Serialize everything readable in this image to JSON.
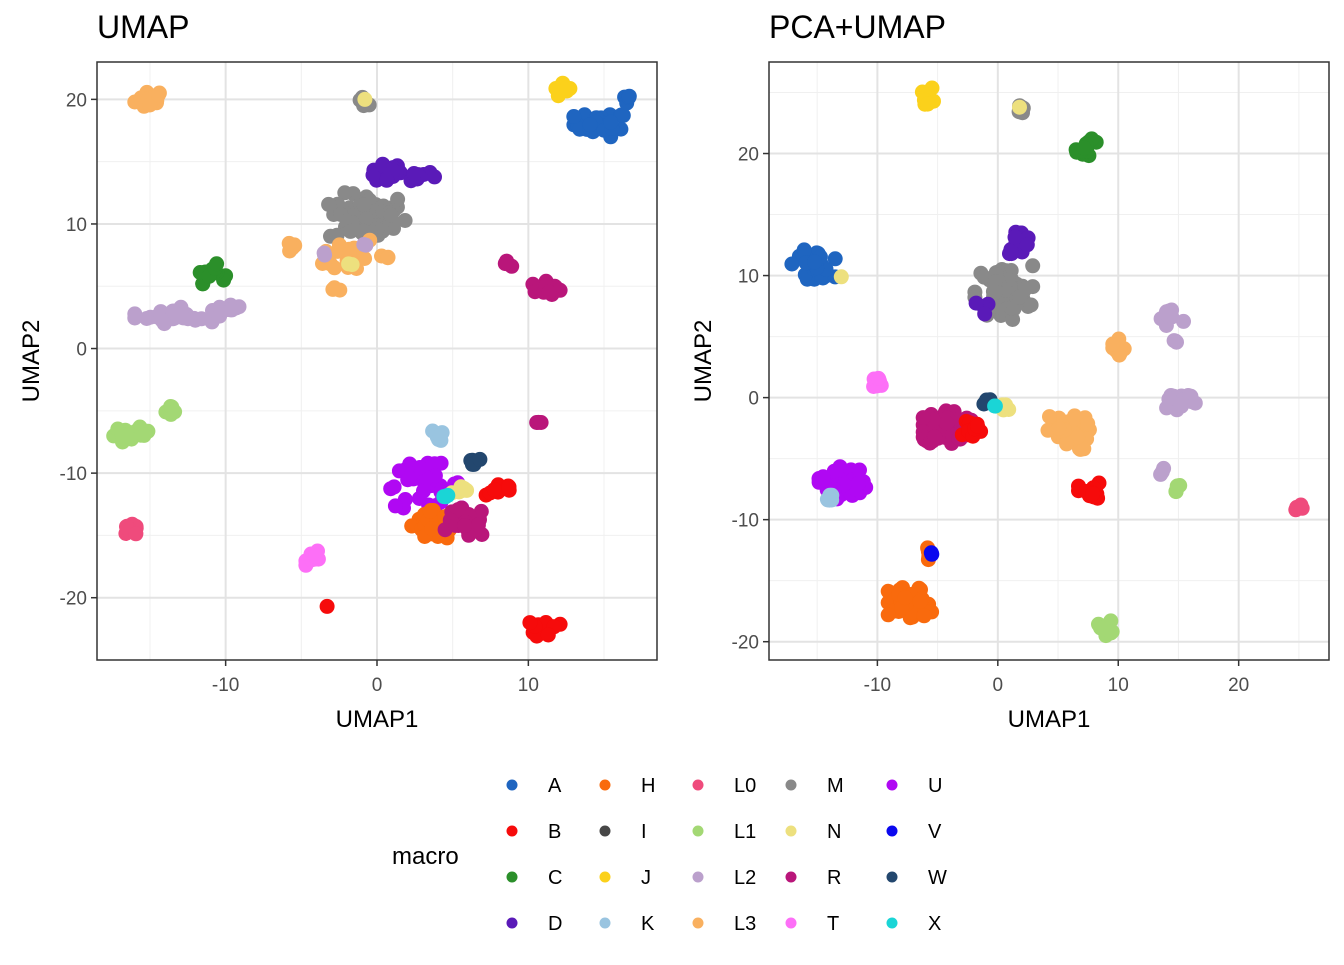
{
  "palette": {
    "A": "#1f65c0",
    "B": "#f60b0b",
    "C": "#2b8f2a",
    "D": "#5a1ab8",
    "H": "#f96a0d",
    "I": "#474747",
    "J": "#fbd11b",
    "K": "#99c4e0",
    "L0": "#ef4b7c",
    "L1": "#a3d874",
    "L2": "#bba0cc",
    "L3": "#f9b05f",
    "M": "#898989",
    "N": "#ede07e",
    "R": "#b9167a",
    "T": "#fd6ff7",
    "U": "#b008f3",
    "V": "#0a08ef",
    "W": "#23476e",
    "X": "#1ad5d6"
  },
  "legend": {
    "title": "macro",
    "columns": [
      [
        "A",
        "B",
        "C",
        "D"
      ],
      [
        "H",
        "I",
        "J",
        "K"
      ],
      [
        "L0",
        "L1",
        "L2",
        "L3"
      ],
      [
        "M",
        "N",
        "R",
        "T"
      ],
      [
        "U",
        "V",
        "W",
        "X"
      ]
    ]
  },
  "chart_data": [
    {
      "type": "scatter",
      "title": "UMAP",
      "xlabel": "UMAP1",
      "ylabel": "UMAP2",
      "xlim": [
        -18.5,
        18.5
      ],
      "ylim": [
        -25,
        23
      ],
      "xticks": [
        -10,
        0,
        10
      ],
      "yticks": [
        -20,
        -10,
        0,
        10,
        20
      ],
      "grid": true,
      "clusters": [
        {
          "group": "L3",
          "x": -15,
          "y": 20,
          "n": 16,
          "sx": 0.5,
          "sy": 0.4
        },
        {
          "group": "M",
          "x": -0.8,
          "y": 20,
          "n": 6,
          "sx": 0.25,
          "sy": 0.25
        },
        {
          "group": "N",
          "x": -0.8,
          "y": 20,
          "n": 1,
          "sx": 0,
          "sy": 0
        },
        {
          "group": "J",
          "x": 12.4,
          "y": 20.7,
          "n": 8,
          "sx": 0.35,
          "sy": 0.3
        },
        {
          "group": "A",
          "x": 14.8,
          "y": 18,
          "n": 28,
          "sx": 0.9,
          "sy": 0.5
        },
        {
          "group": "A",
          "x": 16.5,
          "y": 20,
          "n": 4,
          "sx": 0.2,
          "sy": 0.2
        },
        {
          "group": "D",
          "x": 1.2,
          "y": 14,
          "n": 25,
          "sx": 1.3,
          "sy": 0.4
        },
        {
          "group": "M",
          "x": -0.6,
          "y": 10.5,
          "n": 60,
          "sx": 1.3,
          "sy": 1.0
        },
        {
          "group": "L3",
          "x": -5.5,
          "y": 8.2,
          "n": 6,
          "sx": 0.3,
          "sy": 0.3
        },
        {
          "group": "L3",
          "x": -1.8,
          "y": 7.5,
          "n": 18,
          "sx": 0.9,
          "sy": 0.8
        },
        {
          "group": "L3",
          "x": -2.8,
          "y": 4.7,
          "n": 3,
          "sx": 0.2,
          "sy": 0.2
        },
        {
          "group": "L3",
          "x": 0.7,
          "y": 7.2,
          "n": 3,
          "sx": 0.2,
          "sy": 0.2
        },
        {
          "group": "L2",
          "x": -3.6,
          "y": 7.7,
          "n": 2,
          "sx": 0.15,
          "sy": 0.1
        },
        {
          "group": "L2",
          "x": -0.8,
          "y": 8.3,
          "n": 2,
          "sx": 0.15,
          "sy": 0.1
        },
        {
          "group": "N",
          "x": -1.6,
          "y": 7.0,
          "n": 2,
          "sx": 0.2,
          "sy": 0.2
        },
        {
          "group": "C",
          "x": -11,
          "y": 6.0,
          "n": 12,
          "sx": 0.5,
          "sy": 0.4
        },
        {
          "group": "R",
          "x": 8.5,
          "y": 6.9,
          "n": 4,
          "sx": 0.2,
          "sy": 0.15
        },
        {
          "group": "R",
          "x": 11.2,
          "y": 4.8,
          "n": 16,
          "sx": 0.5,
          "sy": 0.3
        },
        {
          "group": "L2",
          "x": -13.2,
          "y": 2.7,
          "n": 30,
          "sx": 1.4,
          "sy": 0.35
        },
        {
          "group": "L2",
          "x": -9.7,
          "y": 3.3,
          "n": 6,
          "sx": 0.35,
          "sy": 0.2
        },
        {
          "group": "L1",
          "x": -13.5,
          "y": -5.0,
          "n": 6,
          "sx": 0.3,
          "sy": 0.2
        },
        {
          "group": "L1",
          "x": -16.2,
          "y": -6.9,
          "n": 16,
          "sx": 0.6,
          "sy": 0.3
        },
        {
          "group": "R",
          "x": 10.7,
          "y": -6.0,
          "n": 3,
          "sx": 0.15,
          "sy": 0.15
        },
        {
          "group": "K",
          "x": 4.2,
          "y": -7.0,
          "n": 6,
          "sx": 0.3,
          "sy": 0.3
        },
        {
          "group": "W",
          "x": 6.4,
          "y": -8.9,
          "n": 5,
          "sx": 0.25,
          "sy": 0.2
        },
        {
          "group": "U",
          "x": 3.0,
          "y": -11.0,
          "n": 40,
          "sx": 1.3,
          "sy": 0.9
        },
        {
          "group": "B",
          "x": 8.2,
          "y": -11.3,
          "n": 10,
          "sx": 0.5,
          "sy": 0.25
        },
        {
          "group": "N",
          "x": 5.5,
          "y": -11.4,
          "n": 6,
          "sx": 0.35,
          "sy": 0.3
        },
        {
          "group": "H",
          "x": 3.9,
          "y": -14.2,
          "n": 60,
          "sx": 0.8,
          "sy": 0.6
        },
        {
          "group": "R",
          "x": 5.9,
          "y": -14.0,
          "n": 25,
          "sx": 0.7,
          "sy": 0.6
        },
        {
          "group": "X",
          "x": 4.5,
          "y": -12.0,
          "n": 3,
          "sx": 0.12,
          "sy": 0.15
        },
        {
          "group": "L0",
          "x": -16.3,
          "y": -14.6,
          "n": 10,
          "sx": 0.4,
          "sy": 0.25
        },
        {
          "group": "T",
          "x": -4.0,
          "y": -16.7,
          "n": 10,
          "sx": 0.35,
          "sy": 0.35
        },
        {
          "group": "B",
          "x": -3.3,
          "y": -20.7,
          "n": 1,
          "sx": 0,
          "sy": 0
        },
        {
          "group": "B",
          "x": 11.1,
          "y": -22.4,
          "n": 16,
          "sx": 0.5,
          "sy": 0.4
        }
      ]
    },
    {
      "type": "scatter",
      "title": "PCA+UMAP",
      "xlabel": "UMAP1",
      "ylabel": "UMAP2",
      "xlim": [
        -19,
        27.5
      ],
      "ylim": [
        -21.5,
        27.5
      ],
      "xticks": [
        -10,
        0,
        10,
        20
      ],
      "yticks": [
        -20,
        -10,
        0,
        10,
        20
      ],
      "grid": true,
      "clusters": [
        {
          "group": "J",
          "x": -5.8,
          "y": 24.6,
          "n": 8,
          "sx": 0.3,
          "sy": 0.4
        },
        {
          "group": "M",
          "x": 1.8,
          "y": 23.8,
          "n": 6,
          "sx": 0.25,
          "sy": 0.25
        },
        {
          "group": "N",
          "x": 1.8,
          "y": 23.8,
          "n": 1,
          "sx": 0,
          "sy": 0
        },
        {
          "group": "C",
          "x": 7.5,
          "y": 20.4,
          "n": 14,
          "sx": 0.5,
          "sy": 0.4
        },
        {
          "group": "D",
          "x": 1.8,
          "y": 12.8,
          "n": 16,
          "sx": 0.5,
          "sy": 0.5
        },
        {
          "group": "A",
          "x": -15.3,
          "y": 10.9,
          "n": 30,
          "sx": 0.9,
          "sy": 0.6
        },
        {
          "group": "N",
          "x": -13.0,
          "y": 9.9,
          "n": 1,
          "sx": 0,
          "sy": 0
        },
        {
          "group": "M",
          "x": 0.5,
          "y": 8.6,
          "n": 60,
          "sx": 1.2,
          "sy": 1.1
        },
        {
          "group": "D",
          "x": -1.3,
          "y": 7.4,
          "n": 4,
          "sx": 0.3,
          "sy": 0.3
        },
        {
          "group": "L2",
          "x": 14.2,
          "y": 6.5,
          "n": 12,
          "sx": 0.7,
          "sy": 0.6
        },
        {
          "group": "L2",
          "x": 14.8,
          "y": 4.5,
          "n": 3,
          "sx": 0.15,
          "sy": 0.2
        },
        {
          "group": "L3",
          "x": 9.9,
          "y": 4.0,
          "n": 10,
          "sx": 0.35,
          "sy": 0.6
        },
        {
          "group": "T",
          "x": -9.8,
          "y": 1.2,
          "n": 8,
          "sx": 0.3,
          "sy": 0.3
        },
        {
          "group": "L2",
          "x": 15.0,
          "y": -0.2,
          "n": 30,
          "sx": 0.7,
          "sy": 0.4
        },
        {
          "group": "R",
          "x": -4.2,
          "y": -2.4,
          "n": 60,
          "sx": 1.0,
          "sy": 0.7
        },
        {
          "group": "B",
          "x": -2.3,
          "y": -2.6,
          "n": 12,
          "sx": 0.6,
          "sy": 0.5
        },
        {
          "group": "W",
          "x": -0.9,
          "y": -0.4,
          "n": 5,
          "sx": 0.25,
          "sy": 0.2
        },
        {
          "group": "N",
          "x": 0.5,
          "y": -0.8,
          "n": 6,
          "sx": 0.35,
          "sy": 0.3
        },
        {
          "group": "X",
          "x": -0.3,
          "y": -0.6,
          "n": 2,
          "sx": 0.1,
          "sy": 0.1
        },
        {
          "group": "L3",
          "x": 5.8,
          "y": -2.9,
          "n": 40,
          "sx": 0.9,
          "sy": 0.7
        },
        {
          "group": "L2",
          "x": 13.7,
          "y": -6.0,
          "n": 3,
          "sx": 0.15,
          "sy": 0.2
        },
        {
          "group": "L1",
          "x": 14.6,
          "y": -7.4,
          "n": 5,
          "sx": 0.25,
          "sy": 0.2
        },
        {
          "group": "U",
          "x": -12.9,
          "y": -6.9,
          "n": 30,
          "sx": 1.0,
          "sy": 0.7
        },
        {
          "group": "K",
          "x": -14.0,
          "y": -8.3,
          "n": 6,
          "sx": 0.25,
          "sy": 0.3
        },
        {
          "group": "B",
          "x": 7.7,
          "y": -7.8,
          "n": 14,
          "sx": 0.5,
          "sy": 0.4
        },
        {
          "group": "L0",
          "x": 25.0,
          "y": -9.2,
          "n": 6,
          "sx": 0.2,
          "sy": 0.2
        },
        {
          "group": "H",
          "x": -5.7,
          "y": -12.7,
          "n": 6,
          "sx": 0.12,
          "sy": 0.4
        },
        {
          "group": "V",
          "x": -5.5,
          "y": -12.8,
          "n": 2,
          "sx": 0.08,
          "sy": 0.1
        },
        {
          "group": "H",
          "x": -7.3,
          "y": -16.9,
          "n": 55,
          "sx": 0.9,
          "sy": 0.7
        },
        {
          "group": "L1",
          "x": 8.8,
          "y": -18.9,
          "n": 10,
          "sx": 0.35,
          "sy": 0.3
        }
      ]
    }
  ]
}
